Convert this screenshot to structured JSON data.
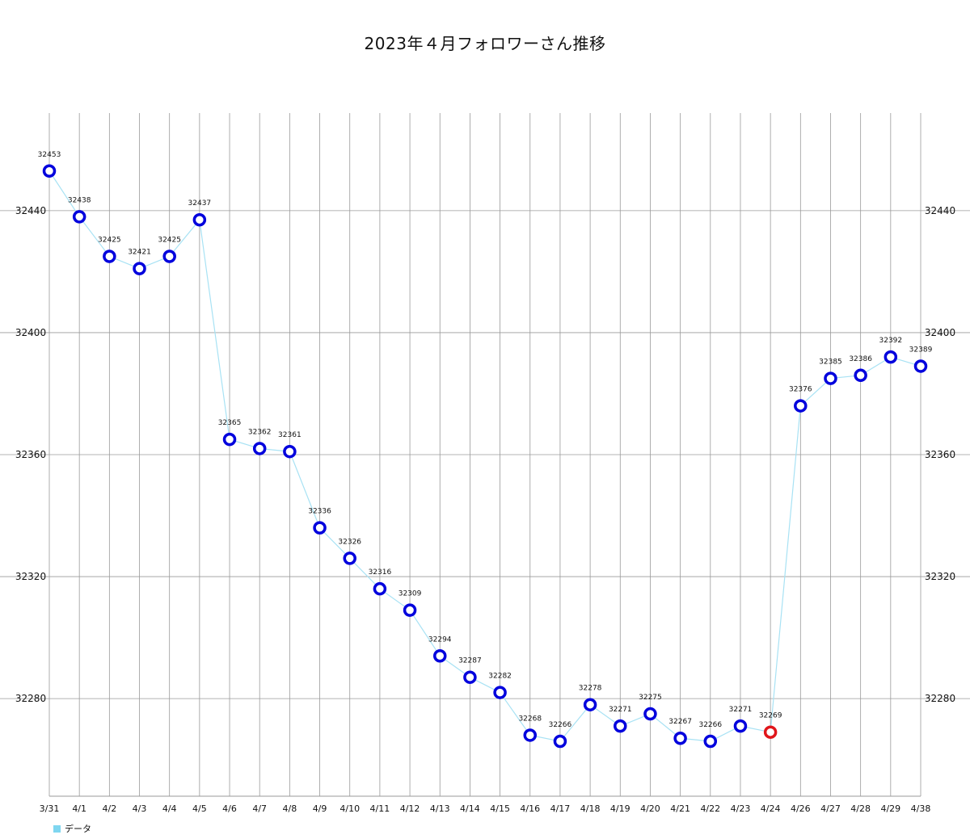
{
  "chart_data": {
    "type": "line",
    "title": "2023年４月フォロワーさん推移",
    "categories": [
      "3/31",
      "4/1",
      "4/2",
      "4/3",
      "4/4",
      "4/5",
      "4/6",
      "4/7",
      "4/8",
      "4/9",
      "4/10",
      "4/11",
      "4/12",
      "4/13",
      "4/14",
      "4/15",
      "4/16",
      "4/17",
      "4/18",
      "4/19",
      "4/20",
      "4/21",
      "4/22",
      "4/23",
      "4/24",
      "4/26",
      "4/27",
      "4/28",
      "4/29",
      "4/38"
    ],
    "series": [
      {
        "name": "データ",
        "values": [
          32453,
          32438,
          32425,
          32421,
          32425,
          32437,
          32365,
          32362,
          32361,
          32336,
          32326,
          32316,
          32309,
          32294,
          32287,
          32282,
          32268,
          32266,
          32278,
          32271,
          32275,
          32267,
          32266,
          32271,
          32269,
          32376,
          32385,
          32386,
          32392,
          32389
        ],
        "data_labels": [
          "32453",
          "32438",
          "32425",
          "32421",
          "32425",
          "32437",
          "32365",
          "32362",
          "32361",
          "32336",
          "32326",
          "32316",
          "32309",
          "32294",
          "32287",
          "32282",
          "32268",
          "32266",
          "32278",
          "32271",
          "32275",
          "32267",
          "32266",
          "32271",
          "32269",
          "32376",
          "32385",
          "32386",
          "32392",
          "32389"
        ],
        "highlight_index": 24
      }
    ],
    "y_ticks": [
      32280,
      32320,
      32360,
      32400,
      32440
    ],
    "y_tick_labels": [
      "32280",
      "32320",
      "32360",
      "32400",
      "32440"
    ],
    "ylim": [
      32248,
      32472
    ],
    "y_axis_both_sides": true,
    "grid": true,
    "legend_position": "bottom-left",
    "colors": {
      "line": "#a8e2f4",
      "marker": "#0000dd",
      "marker_highlight": "#e0161b",
      "marker_fill": "#ffffff",
      "grid": "#9a9a9a",
      "legend_swatch": "#7fd6f0"
    }
  }
}
